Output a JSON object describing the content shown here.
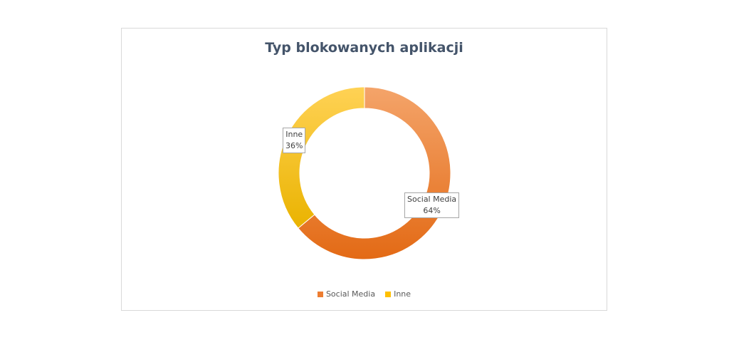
{
  "chart_data": {
    "type": "pie",
    "subtype": "donut",
    "title": "Typ blokowanych aplikacji",
    "categories": [
      "Social Media",
      "Inne"
    ],
    "values": [
      64,
      36
    ],
    "labels": [
      {
        "category": "Social Media",
        "percent": "64%"
      },
      {
        "category": "Inne",
        "percent": "36%"
      }
    ],
    "legend": "bottom",
    "colors": {
      "Social Media": "#ed7d31",
      "Inne": "#ffc000"
    }
  }
}
